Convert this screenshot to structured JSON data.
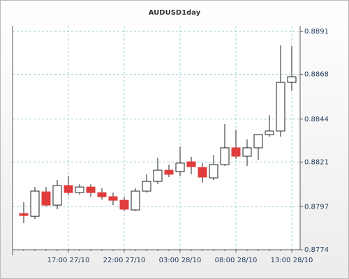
{
  "chart_data": {
    "type": "candlestick",
    "title": "AUDUSD1day",
    "categories": [
      null,
      null,
      null,
      null,
      "17:00 27/10",
      null,
      null,
      null,
      null,
      "22:00 27/10",
      null,
      null,
      null,
      null,
      "03:00 28/10",
      null,
      null,
      null,
      null,
      "08:00 28/10",
      null,
      null,
      null,
      null,
      "13:00 28/10"
    ],
    "series": [
      {
        "open": [
          0.87934,
          0.87919,
          0.8805,
          0.87979,
          0.88084,
          0.88046,
          0.88076,
          0.88046,
          0.88024,
          0.88005,
          0.87953,
          0.88054,
          0.88106,
          0.88166,
          0.88159,
          0.88211,
          0.88181,
          0.88125,
          0.88196,
          0.88286,
          0.88241,
          0.88286,
          0.88357,
          0.88376,
          0.88637
        ],
        "high": [
          0.87994,
          0.88076,
          0.88076,
          0.88114,
          0.88136,
          0.88091,
          0.88091,
          0.88069,
          0.88046,
          0.88024,
          0.88069,
          0.88144,
          0.88233,
          0.88196,
          0.88293,
          0.88237,
          0.88204,
          0.88248,
          0.88413,
          0.88383,
          0.88331,
          0.88357,
          0.88461,
          0.88835,
          0.88832
        ],
        "low": [
          0.87882,
          0.87904,
          0.87972,
          0.87957,
          0.88032,
          0.88035,
          0.88024,
          0.88009,
          0.87979,
          0.87949,
          0.87949,
          0.88046,
          0.88091,
          0.88129,
          0.88136,
          0.88144,
          0.88099,
          0.88114,
          0.88189,
          0.88226,
          0.88189,
          0.88222,
          0.88346,
          0.88346,
          0.88592
        ],
        "close": [
          0.87923,
          0.88054,
          0.87979,
          0.88084,
          0.88046,
          0.88076,
          0.88046,
          0.88024,
          0.88005,
          0.87957,
          0.88054,
          0.88106,
          0.88166,
          0.88144,
          0.88204,
          0.88185,
          0.88129,
          0.88196,
          0.88286,
          0.88241,
          0.88286,
          0.88357,
          0.88376,
          0.88637,
          0.88667
        ]
      }
    ],
    "up_color": "#ffffff",
    "down_color": "#e03c3c",
    "ylim": [
      0.8774,
      0.8894
    ],
    "yticks": [
      0.8774,
      0.8797,
      0.8821,
      0.8844,
      0.8868,
      0.8891
    ],
    "grid": true
  }
}
